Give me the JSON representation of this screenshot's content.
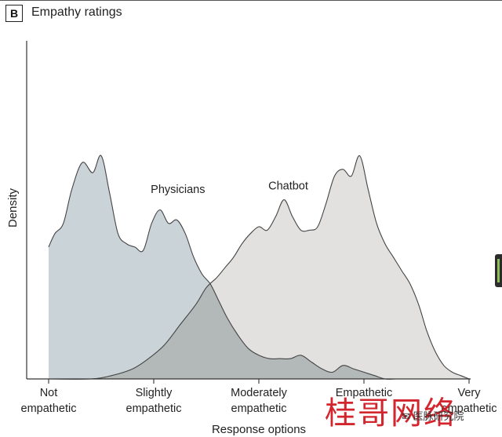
{
  "panel": {
    "badge": "B",
    "title": "Empathy ratings"
  },
  "watermark": {
    "text": "桂哥网络",
    "tag": "医脉研究院"
  },
  "colors": {
    "physicians_fill": "#c9d3d8",
    "chatbot_fill": "#e2e1df",
    "overlap_fill": "#b3b8b8",
    "outline": "#444444",
    "watermark": "#d11a22"
  },
  "chart_data": {
    "type": "area",
    "title": "Empathy ratings",
    "xlabel": "Response options",
    "ylabel": "Density",
    "x_ticks": [
      {
        "pos": 1,
        "line1": "Not",
        "line2": "empathetic"
      },
      {
        "pos": 2,
        "line1": "Slightly",
        "line2": "empathetic"
      },
      {
        "pos": 3,
        "line1": "Moderately",
        "line2": "empathetic"
      },
      {
        "pos": 4,
        "line1": "Empathetic",
        "line2": ""
      },
      {
        "pos": 5,
        "line1": "Very",
        "line2": "empathetic"
      }
    ],
    "xlim": [
      0.85,
      5.0
    ],
    "ylim": [
      0,
      1.0
    ],
    "grid": false,
    "legend": "none (series labeled directly on the plot)",
    "series": [
      {
        "name": "Physicians",
        "label_pos": [
          2.23,
          0.55
        ],
        "x": [
          1.0,
          1.06,
          1.14,
          1.22,
          1.32,
          1.42,
          1.5,
          1.58,
          1.66,
          1.74,
          1.82,
          1.9,
          1.98,
          2.06,
          2.14,
          2.22,
          2.3,
          2.38,
          2.46,
          2.54,
          2.62,
          2.7,
          2.8,
          2.9,
          3.0,
          3.1,
          3.2,
          3.3,
          3.4,
          3.5,
          3.6,
          3.7,
          3.8,
          3.9,
          4.0,
          4.1,
          4.2,
          4.3,
          4.4,
          4.5,
          4.6,
          4.7,
          4.8,
          4.9,
          5.0
        ],
        "density": [
          0.39,
          0.43,
          0.46,
          0.56,
          0.64,
          0.61,
          0.66,
          0.55,
          0.43,
          0.4,
          0.39,
          0.38,
          0.46,
          0.5,
          0.46,
          0.47,
          0.43,
          0.36,
          0.31,
          0.28,
          0.23,
          0.18,
          0.13,
          0.09,
          0.07,
          0.06,
          0.06,
          0.06,
          0.07,
          0.05,
          0.03,
          0.02,
          0.04,
          0.03,
          0.02,
          0.01,
          0.0,
          0.0,
          0.0,
          0.0,
          0.0,
          0.0,
          0.0,
          0.0,
          0.0
        ]
      },
      {
        "name": "Chatbot",
        "label_pos": [
          3.28,
          0.56
        ],
        "x": [
          1.0,
          1.4,
          1.6,
          1.8,
          1.95,
          2.1,
          2.25,
          2.4,
          2.5,
          2.6,
          2.68,
          2.76,
          2.84,
          2.92,
          3.0,
          3.08,
          3.16,
          3.24,
          3.32,
          3.4,
          3.48,
          3.56,
          3.64,
          3.72,
          3.8,
          3.88,
          3.96,
          4.04,
          4.12,
          4.2,
          4.28,
          4.36,
          4.44,
          4.52,
          4.6,
          4.68,
          4.76,
          4.84,
          4.92,
          5.0
        ],
        "density": [
          0.0,
          0.0,
          0.01,
          0.03,
          0.06,
          0.1,
          0.16,
          0.22,
          0.27,
          0.3,
          0.33,
          0.36,
          0.4,
          0.43,
          0.45,
          0.44,
          0.48,
          0.53,
          0.48,
          0.44,
          0.44,
          0.45,
          0.52,
          0.6,
          0.62,
          0.6,
          0.66,
          0.56,
          0.46,
          0.4,
          0.36,
          0.32,
          0.28,
          0.22,
          0.14,
          0.08,
          0.04,
          0.02,
          0.01,
          0.0
        ]
      }
    ]
  }
}
